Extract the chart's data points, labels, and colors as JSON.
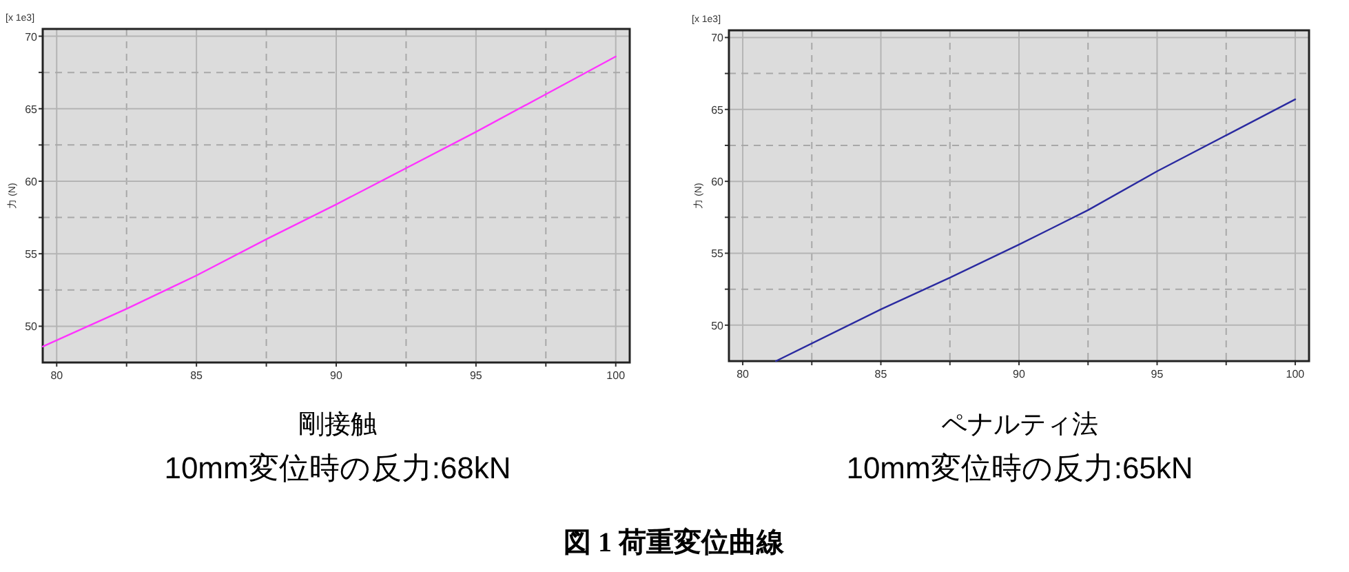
{
  "chart_data": [
    {
      "type": "line",
      "title": "剛接触",
      "subtitle": "10mm変位時の反力:68kN",
      "ylabel": "力 (N)",
      "annotations": [
        "[x 1e3]"
      ],
      "grid": true,
      "xlim": [
        79.5,
        100.5
      ],
      "ylim": [
        47.5,
        70.5
      ],
      "xticks": [
        80,
        {
          "value": 82.5,
          "label": null
        },
        85,
        {
          "value": 87.5,
          "label": null
        },
        90,
        {
          "value": 92.5,
          "label": null
        },
        95,
        {
          "value": 97.5,
          "label": null
        },
        100
      ],
      "yticks": [
        50,
        {
          "value": 52.5,
          "label": null
        },
        55,
        {
          "value": 57.5,
          "label": null
        },
        60,
        {
          "value": 62.5,
          "label": null
        },
        65,
        {
          "value": 67.5,
          "label": null
        },
        70
      ],
      "x": [
        79.5,
        82.5,
        85,
        87.5,
        90,
        92.5,
        95,
        97.5,
        100
      ],
      "series": [
        {
          "color": "#ff33ff",
          "values": [
            48.6,
            51.2,
            53.5,
            56.0,
            58.4,
            60.9,
            63.4,
            66.0,
            68.6
          ]
        }
      ]
    },
    {
      "type": "line",
      "title": "ペナルティ法",
      "subtitle": "10mm変位時の反力:65kN",
      "ylabel": "力 (N)",
      "annotations": [
        "[x 1e3]"
      ],
      "grid": true,
      "xlim": [
        79.5,
        100.5
      ],
      "ylim": [
        47.5,
        70.5
      ],
      "xticks": [
        80,
        {
          "value": 82.5,
          "label": null
        },
        85,
        {
          "value": 87.5,
          "label": null
        },
        90,
        {
          "value": 92.5,
          "label": null
        },
        95,
        {
          "value": 97.5,
          "label": null
        },
        100
      ],
      "yticks": [
        50,
        {
          "value": 52.5,
          "label": null
        },
        55,
        {
          "value": 57.5,
          "label": null
        },
        60,
        {
          "value": 62.5,
          "label": null
        },
        65,
        {
          "value": 67.5,
          "label": null
        },
        70
      ],
      "x": [
        81.2,
        85,
        87.5,
        90,
        92.5,
        95,
        97.5,
        100
      ],
      "series": [
        {
          "color": "#2a2aa0",
          "values": [
            47.5,
            51.1,
            53.3,
            55.6,
            58.0,
            60.7,
            63.2,
            65.7
          ]
        }
      ]
    },
    {
      "type": "other",
      "title": "図 1 荷重変位曲線"
    }
  ]
}
